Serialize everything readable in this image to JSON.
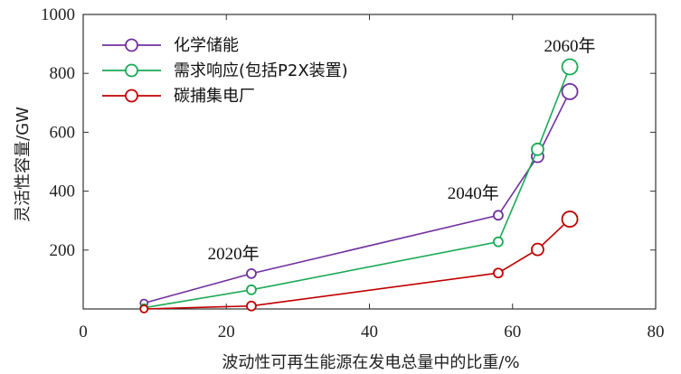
{
  "chart_data": {
    "type": "line",
    "title": "",
    "xlabel": "波动性可再生能源在发电总量中的比重/%",
    "ylabel": "灵活性容量/GW",
    "xlim": [
      0,
      80
    ],
    "ylim": [
      0,
      1000
    ],
    "xticks": [
      0,
      20,
      40,
      60,
      80
    ],
    "yticks": [
      200,
      400,
      600,
      800,
      1000
    ],
    "grid": false,
    "legend_position": "top-left",
    "series": [
      {
        "name": "化学储能",
        "color": "#7030A0",
        "points": [
          {
            "x": 8.5,
            "y": 20
          },
          {
            "x": 23.5,
            "y": 120
          },
          {
            "x": 58,
            "y": 318
          },
          {
            "x": 63.5,
            "y": 518
          },
          {
            "x": 68,
            "y": 738
          }
        ]
      },
      {
        "name": "需求响应(包括P2X装置)",
        "color": "#1AAA55",
        "points": [
          {
            "x": 8.5,
            "y": 4
          },
          {
            "x": 23.5,
            "y": 65
          },
          {
            "x": 58,
            "y": 228
          },
          {
            "x": 63.5,
            "y": 542
          },
          {
            "x": 68,
            "y": 822
          }
        ]
      },
      {
        "name": "碳捕集电厂",
        "color": "#C00000",
        "points": [
          {
            "x": 8.5,
            "y": 0
          },
          {
            "x": 23.5,
            "y": 10
          },
          {
            "x": 58,
            "y": 122
          },
          {
            "x": 63.5,
            "y": 202
          },
          {
            "x": 68,
            "y": 305
          }
        ]
      }
    ],
    "annotations": [
      {
        "text": "2020年",
        "x": 21,
        "y": 168
      },
      {
        "text": "2040年",
        "x": 54.5,
        "y": 375
      },
      {
        "text": "2060年",
        "x": 68,
        "y": 875
      }
    ]
  }
}
